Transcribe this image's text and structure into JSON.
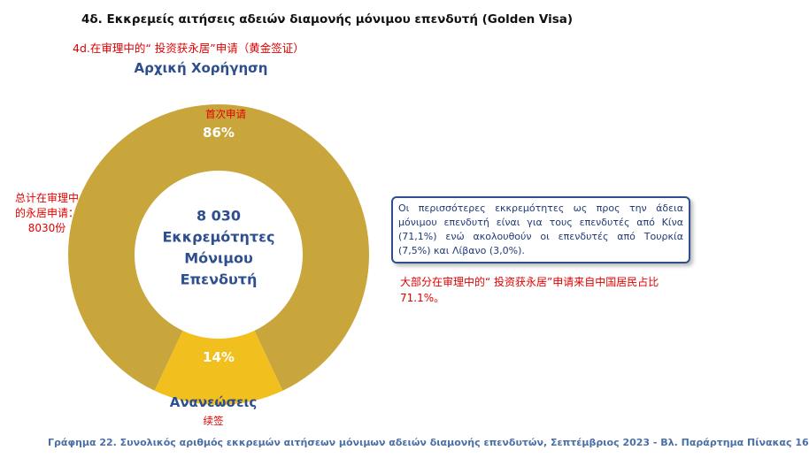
{
  "chart_data": {
    "type": "donut",
    "title": "4δ. Εκκρεμείς αιτήσεις αδειών διαμονής μόνιμου επενδυτή (Golden Visa)",
    "subtitle": "4d.在审理中的“ 投资获永居”申请（黄金签证）",
    "categories": [
      "Αρχική Χορήγηση",
      "Ανανεώσεις"
    ],
    "categories_zh": [
      "首次申请",
      "续签"
    ],
    "values": [
      86,
      14
    ],
    "value_labels": [
      "86%",
      "14%"
    ],
    "colors": [
      "#c9a63b",
      "#f1bf1e"
    ],
    "center_label": [
      "8 030",
      "Εκκρεμότητες",
      "Μόνιμου",
      "Επενδυτή"
    ],
    "left_note": [
      "总计在审理中",
      "的永居申请：",
      "8030份"
    ],
    "box_text": "Οι περισσότερες εκκρεμότητες ως προς την άδεια μόνιμου επενδυτή είναι για τους επενδυτές από Κίνα (71,1%) ενώ ακολουθούν οι επενδυτές από Τουρκία (7,5%) και Λίβανο (3,0%).",
    "red_note": "大部分在审理中的“ 投资获永居”申请来自中国居民占比71.1%。",
    "caption": "Γράφημα 22. Συνολικός αριθμός εκκρεμών αιτήσεων μόνιμων αδειών διαμονής επενδυτών, Σεπτέμβριος 2023 - Βλ. Παράρτημα  Πίνακας 16"
  }
}
